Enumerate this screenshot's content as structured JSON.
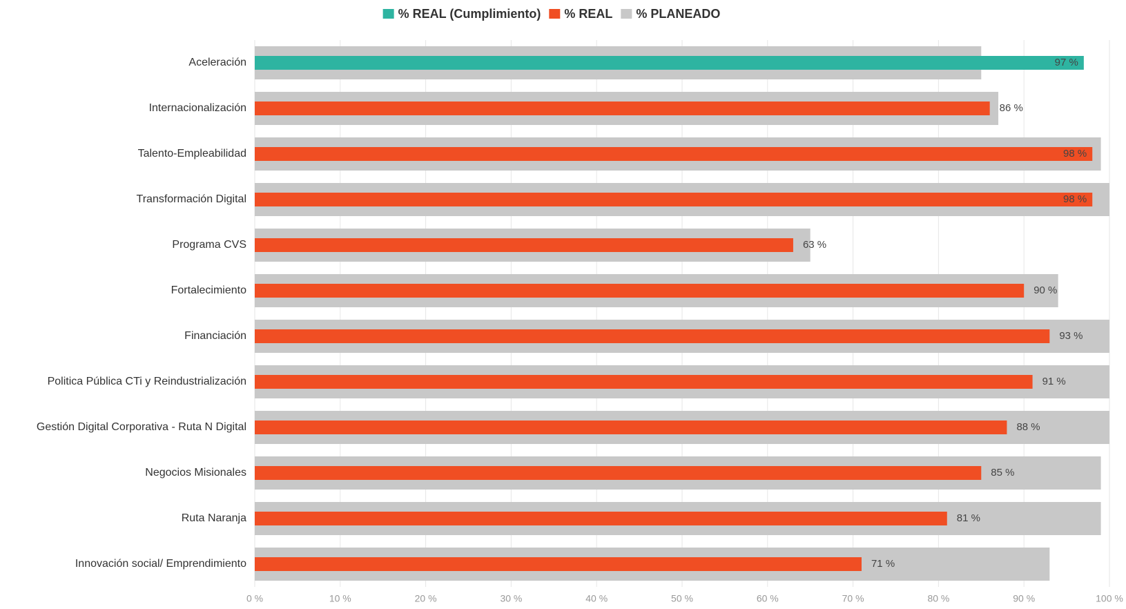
{
  "chart_data": {
    "type": "bar",
    "orientation": "horizontal",
    "categories": [
      "Aceleración",
      "Internacionalización",
      "Talento-Empleabilidad",
      "Transformación Digital",
      "Programa CVS",
      "Fortalecimiento",
      "Financiación",
      "Politica Pública CTi y Reindustrialización",
      "Gestión Digital Corporativa - Ruta N Digital",
      "Negocios Misionales",
      "Ruta Naranja",
      "Innovación social/ Emprendimiento"
    ],
    "series": [
      {
        "name": "% REAL (Cumplimiento)",
        "color": "#2eb4a1",
        "values": [
          97,
          null,
          null,
          null,
          null,
          null,
          null,
          null,
          null,
          null,
          null,
          null
        ],
        "value_labels": [
          "97 %",
          null,
          null,
          null,
          null,
          null,
          null,
          null,
          null,
          null,
          null,
          null
        ]
      },
      {
        "name": "% REAL",
        "color": "#f04e23",
        "values": [
          null,
          86,
          98,
          98,
          63,
          90,
          93,
          91,
          88,
          85,
          81,
          71
        ],
        "value_labels": [
          null,
          "86 %",
          "98 %",
          "98 %",
          "63 %",
          "90 %",
          "93 %",
          "91 %",
          "88 %",
          "85 %",
          "81 %",
          "71 %"
        ]
      },
      {
        "name": "% PLANEADO",
        "color": "#c8c8c8",
        "values": [
          85,
          87,
          99,
          100,
          65,
          94,
          100,
          100,
          100,
          99,
          99,
          93
        ]
      }
    ],
    "xlim": [
      0,
      100
    ],
    "xticks": [
      {
        "value": 0,
        "label": "0 %"
      },
      {
        "value": 10,
        "label": "10 %"
      },
      {
        "value": 20,
        "label": "20 %"
      },
      {
        "value": 30,
        "label": "30 %"
      },
      {
        "value": 40,
        "label": "40 %"
      },
      {
        "value": 50,
        "label": "50 %"
      },
      {
        "value": 60,
        "label": "60 %"
      },
      {
        "value": 70,
        "label": "70 %"
      },
      {
        "value": 80,
        "label": "80 %"
      },
      {
        "value": 90,
        "label": "90 %"
      },
      {
        "value": 100,
        "label": "100 %"
      }
    ],
    "grid": true,
    "legend": "top"
  }
}
